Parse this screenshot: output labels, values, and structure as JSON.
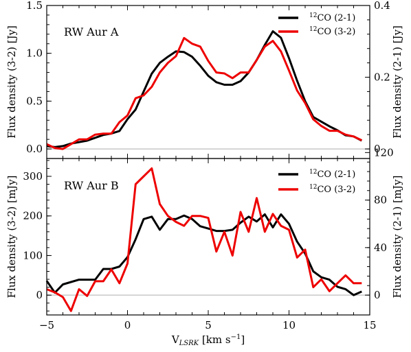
{
  "chart_data": [
    {
      "type": "line",
      "panel": "top",
      "panel_label": "RW Aur A",
      "x": [
        -5.0,
        -4.5,
        -4.0,
        -3.5,
        -3.0,
        -2.5,
        -2.0,
        -1.5,
        -1.0,
        -0.5,
        0.0,
        0.5,
        1.0,
        1.5,
        2.0,
        2.5,
        3.0,
        3.5,
        4.0,
        4.5,
        5.0,
        5.5,
        6.0,
        6.5,
        7.0,
        7.5,
        8.0,
        8.5,
        9.0,
        9.5,
        10.0,
        10.5,
        11.0,
        11.5,
        12.0,
        12.5,
        13.0,
        13.5,
        14.0,
        14.5
      ],
      "xlim": [
        -5,
        15
      ],
      "xticks": [
        "−5",
        "0",
        "5",
        "10",
        "15"
      ],
      "xtick_values": [
        -5,
        0,
        5,
        10,
        15
      ],
      "ylabel_left": "Flux density (3-2) [Jy]",
      "ylabel_right": "Flux density (2-1) [Jy]",
      "ylim_left": [
        -0.1,
        1.5
      ],
      "yticks_left": [
        "0.0",
        "0.5",
        "1.0",
        "1.5"
      ],
      "ytick_values_left": [
        0,
        0.5,
        1.0,
        1.5
      ],
      "ylim_right": [
        -0.0267,
        0.4
      ],
      "yticks_right": [
        "0",
        "0.2",
        "0.4"
      ],
      "ytick_values_right": [
        0,
        0.2,
        0.4
      ],
      "series": [
        {
          "name": "12CO (2-1)",
          "legend_sup": "12",
          "legend_text": "CO (2-1)",
          "axis": "right",
          "color": "#000000",
          "values": [
            0.008,
            0.005,
            0.008,
            0.015,
            0.019,
            0.023,
            0.031,
            0.039,
            0.043,
            0.05,
            0.083,
            0.11,
            0.16,
            0.21,
            0.24,
            0.257,
            0.272,
            0.27,
            0.257,
            0.232,
            0.204,
            0.186,
            0.179,
            0.179,
            0.189,
            0.213,
            0.248,
            0.29,
            0.328,
            0.31,
            0.253,
            0.19,
            0.133,
            0.089,
            0.076,
            0.063,
            0.052,
            0.038,
            0.035,
            0.023
          ]
        },
        {
          "name": "12CO (3-2)",
          "legend_sup": "12",
          "legend_text": "CO (3-2)",
          "axis": "left",
          "color": "#ee0000",
          "values": [
            0.05,
            0.01,
            0.0,
            0.05,
            0.1,
            0.1,
            0.15,
            0.16,
            0.16,
            0.28,
            0.35,
            0.53,
            0.56,
            0.65,
            0.8,
            0.9,
            0.97,
            1.16,
            1.1,
            1.07,
            0.92,
            0.8,
            0.79,
            0.74,
            0.8,
            0.8,
            0.93,
            1.07,
            1.13,
            1.02,
            0.82,
            0.61,
            0.48,
            0.31,
            0.24,
            0.19,
            0.19,
            0.15,
            0.13,
            0.09
          ]
        }
      ],
      "zero_line_color": "#c8c8c8"
    },
    {
      "type": "line",
      "panel": "bottom",
      "panel_label": "RW Aur B",
      "x": [
        -5.0,
        -4.5,
        -4.0,
        -3.5,
        -3.0,
        -2.5,
        -2.0,
        -1.5,
        -1.0,
        -0.5,
        0.0,
        0.5,
        1.0,
        1.5,
        2.0,
        2.5,
        3.0,
        3.5,
        4.0,
        4.5,
        5.0,
        5.5,
        6.0,
        6.5,
        7.0,
        7.5,
        8.0,
        8.5,
        9.0,
        9.5,
        10.0,
        10.5,
        11.0,
        11.5,
        12.0,
        12.5,
        13.0,
        13.5,
        14.0,
        14.5
      ],
      "xlim": [
        -5,
        15
      ],
      "xlabel": "V",
      "xlabel_sub": "LSRK",
      "xlabel_unit": "[km s",
      "xlabel_unit_sup": "−1",
      "xlabel_unit_end": "]",
      "ylabel_left": "Flux density (3-2) [mJy]",
      "ylabel_right": "Flux density (2-1) [mJy]",
      "ylim_left": [
        -50,
        345
      ],
      "yticks_left": [
        "0",
        "100",
        "200",
        "300"
      ],
      "ytick_values_left": [
        0,
        100,
        200,
        300
      ],
      "ylim_right": [
        -16.7,
        115
      ],
      "yticks_right": [
        "0",
        "40",
        "80",
        "120"
      ],
      "ytick_values_right": [
        0,
        40,
        80,
        120
      ],
      "series": [
        {
          "name": "12CO (2-1)",
          "legend_sup": "12",
          "legend_text": "CO (2-1)",
          "axis": "right",
          "color": "#000000",
          "values": [
            12,
            2,
            9,
            11,
            13,
            13,
            13,
            22,
            22,
            24,
            32,
            47,
            64,
            66,
            55,
            64,
            64,
            67,
            64,
            58,
            56,
            54,
            54,
            55,
            61,
            66,
            62,
            68,
            57,
            68,
            60,
            45,
            35,
            20,
            15,
            13,
            7,
            5,
            0,
            3
          ]
        },
        {
          "name": "12CO (3-2)",
          "legend_sup": "12",
          "legend_text": "CO (3-2)",
          "axis": "left",
          "color": "#ee0000",
          "values": [
            15,
            7,
            -5,
            -40,
            15,
            -2,
            35,
            35,
            65,
            30,
            80,
            280,
            300,
            320,
            230,
            200,
            185,
            175,
            200,
            200,
            195,
            110,
            160,
            100,
            210,
            160,
            245,
            160,
            205,
            175,
            165,
            95,
            115,
            20,
            40,
            10,
            30,
            50,
            30,
            30
          ]
        }
      ],
      "zero_line_color": "#c8c8c8"
    }
  ]
}
